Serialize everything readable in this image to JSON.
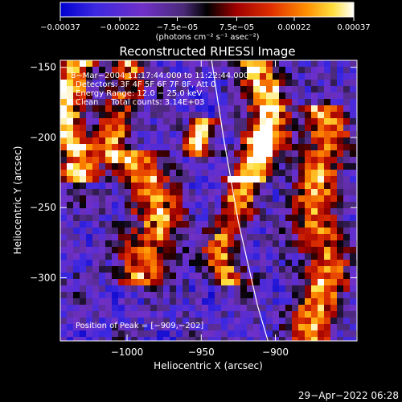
{
  "chart_data": {
    "type": "heatmap",
    "title": "Reconstructed RHESSI Image",
    "xlabel": "Heliocentric X (arcsec)",
    "ylabel": "Heliocentric Y (arcsec)",
    "xlim": [
      -1045,
      -845
    ],
    "ylim": [
      -345,
      -145
    ],
    "x_ticks": [
      -1000,
      -950,
      -900
    ],
    "y_ticks": [
      -150,
      -200,
      -250,
      -300
    ],
    "x_tick_labels": [
      "−1000",
      "−950",
      "−900"
    ],
    "y_tick_labels": [
      "−150",
      "−200",
      "−250",
      "−300"
    ],
    "colorbar": {
      "min": -0.00037,
      "max": 0.00037,
      "tick_values": [
        -0.00037,
        -0.00022,
        -7.5e-05,
        7.5e-05,
        0.00022,
        0.00037
      ],
      "tick_labels": [
        "−0.00037",
        "−0.00022",
        "−7.5e−05",
        "7.5e−05",
        "0.00022",
        "0.00037"
      ],
      "unit_text": "(photons cm⁻² s⁻¹ asec⁻²)"
    },
    "annotations": [
      "8−Mar−2004 11:17:44.000 to 11:22:44.000",
      "Detectors: 3F 4F 5F 6F 7F 8F, Att 0",
      "Energy Range: 12.0 − 25.0 keV",
      "Clean     Total counts: 3.14E+03"
    ],
    "peak_label": "Position of Peak = [−909,−202]",
    "peak": [
      -909,
      -202
    ],
    "emission_ridges": [
      {
        "x": -1038,
        "y_from": -145,
        "y_to": -230,
        "width": 9,
        "strength": 1.0
      },
      {
        "x": -1005,
        "y_from": -150,
        "y_to": -215,
        "width": 8,
        "strength": 0.7
      },
      {
        "x": -948,
        "y_from": -190,
        "y_to": -212,
        "width": 6,
        "strength": 1.0
      },
      {
        "x": -909,
        "y_from": -150,
        "y_to": -230,
        "width": 9,
        "strength": 1.0
      },
      {
        "x": -870,
        "y_from": -180,
        "y_to": -345,
        "width": 10,
        "strength": 0.8
      },
      {
        "x": -985,
        "y_from": -215,
        "y_to": -300,
        "width": 12,
        "strength": 0.75
      },
      {
        "x": -930,
        "y_from": -230,
        "y_to": -300,
        "width": 8,
        "strength": 0.7
      }
    ],
    "limb_points": [
      [
        -943,
        -145
      ],
      [
        -935,
        -200
      ],
      [
        -925,
        -260
      ],
      [
        -912,
        -320
      ],
      [
        -905,
        -345
      ]
    ],
    "grid": false
  },
  "footer": {
    "timestamp": "29−Apr−2022 06:28"
  }
}
